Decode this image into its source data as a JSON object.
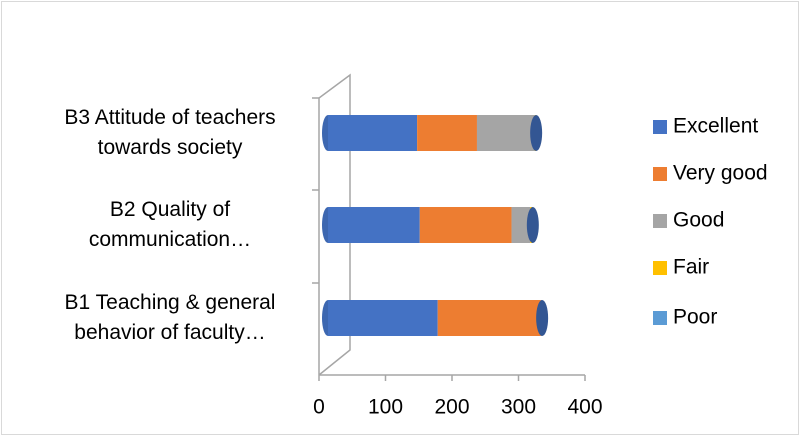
{
  "chart_data": {
    "type": "bar",
    "orientation": "horizontal",
    "stacked": true,
    "categories": [
      "B1 Teaching & general behavior of faculty…",
      "B2 Quality of communication…",
      "B3 Attitude of teachers towards society"
    ],
    "series": [
      {
        "name": "Excellent",
        "color": "#4472c4",
        "values": [
          165,
          138,
          134
        ]
      },
      {
        "name": "Very good",
        "color": "#ed7d31",
        "values": [
          155,
          138,
          90
        ]
      },
      {
        "name": "Good",
        "color": "#a5a5a5",
        "values": [
          2,
          28,
          87
        ]
      },
      {
        "name": "Fair",
        "color": "#ffc000",
        "values": [
          0,
          3,
          2
        ]
      },
      {
        "name": "Poor",
        "color": "#5b9bd5",
        "values": [
          0,
          1,
          0
        ]
      }
    ],
    "xlim": [
      0,
      400
    ],
    "xticks": [
      0,
      100,
      200,
      300,
      400
    ],
    "legend": "right"
  }
}
